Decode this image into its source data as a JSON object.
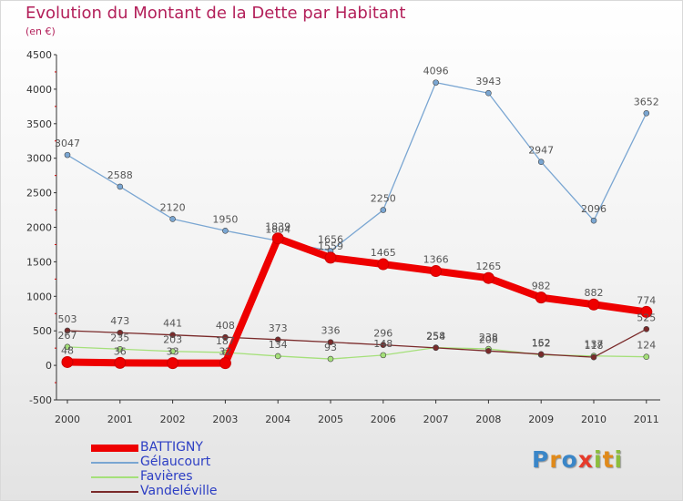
{
  "title": "Evolution du Montant de la Dette par Habitant",
  "subtitle": "(en €)",
  "logo": {
    "letters": [
      {
        "ch": "P",
        "color": "#3a86c8"
      },
      {
        "ch": "r",
        "color": "#e08a1a"
      },
      {
        "ch": "o",
        "color": "#3a86c8"
      },
      {
        "ch": "x",
        "color": "#e63a2a"
      },
      {
        "ch": "i",
        "color": "#8cbd3c"
      },
      {
        "ch": "t",
        "color": "#e08a1a"
      },
      {
        "ch": "i",
        "color": "#8cbd3c"
      }
    ]
  },
  "chart_data": {
    "type": "line",
    "title": "Evolution du Montant de la Dette par Habitant",
    "subtitle": "(en €)",
    "x": [
      "2000",
      "2001",
      "2002",
      "2003",
      "2004",
      "2005",
      "2006",
      "2007",
      "2008",
      "2009",
      "2010",
      "2011"
    ],
    "ylim": [
      -500,
      4500
    ],
    "yticks": [
      "-500",
      "0",
      "500",
      "1000",
      "1500",
      "2000",
      "2500",
      "3000",
      "3500",
      "4000",
      "4500"
    ],
    "ytick_values": [
      -500,
      0,
      500,
      1000,
      1500,
      2000,
      2500,
      3000,
      3500,
      4000,
      4500
    ],
    "grid": false,
    "legend_position": "bottom-left",
    "series": [
      {
        "name": "BATTIGNY",
        "color": "#ee0000",
        "values": [
          48,
          36,
          33,
          32,
          1839,
          1559,
          1465,
          1366,
          1265,
          982,
          882,
          774
        ],
        "labels": [
          "48",
          "36",
          "33",
          "32",
          "1839",
          "1559",
          "1465",
          "1366",
          "1265",
          "982",
          "882",
          "774"
        ]
      },
      {
        "name": "Gélaucourt",
        "color": "#7aa6d2",
        "values": [
          3047,
          2588,
          2120,
          1950,
          1804,
          1656,
          2250,
          4096,
          3943,
          2947,
          2096,
          3652
        ],
        "labels": [
          "3047",
          "2588",
          "2120",
          "1950",
          "1804",
          "1656",
          "2250",
          "4096",
          "3943",
          "2947",
          "2096",
          "3652"
        ]
      },
      {
        "name": "Favières",
        "color": "#a5e07a",
        "values": [
          267,
          235,
          203,
          187,
          134,
          93,
          148,
          258,
          238,
          152,
          137,
          124
        ],
        "labels": [
          "267",
          "235",
          "203",
          "187",
          "134",
          "93",
          "148",
          "258",
          "238",
          "152",
          "137",
          "124"
        ]
      },
      {
        "name": "Vandeléville",
        "color": "#7a2a2a",
        "values": [
          503,
          473,
          441,
          408,
          373,
          336,
          296,
          254,
          208,
          162,
          118,
          525
        ],
        "labels": [
          "503",
          "473",
          "441",
          "408",
          "373",
          "336",
          "296",
          "254",
          "208",
          "162",
          "118",
          "525"
        ]
      }
    ]
  }
}
